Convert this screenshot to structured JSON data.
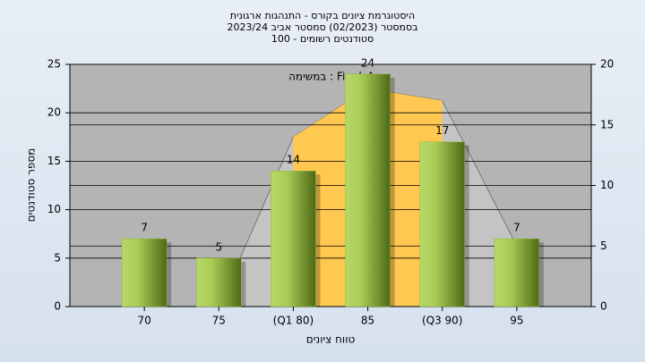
{
  "chart_data": {
    "type": "bar",
    "title": [
      "היסטוגרמת ציונים בקורס - התנהגות ארגונית",
      "בסמסטר  (02/2023)  סמסטר אביב 2023/24",
      "סטודנטים רשומים - 100"
    ],
    "annotation": "במשימה : Final_A",
    "y_label": "מספר סטודנטים",
    "x_label": "טווח ציונים",
    "categories": [
      "70",
      "75",
      "(Q1 80)",
      "85",
      "(Q3 90)",
      "95"
    ],
    "values": [
      7,
      5,
      14,
      24,
      17,
      7
    ],
    "color": "#8fb83a",
    "ylim": [
      0,
      25
    ],
    "yticks": [
      0,
      5,
      10,
      15,
      20,
      25
    ],
    "y2lim": [
      0,
      20
    ],
    "y2ticks": [
      0,
      5,
      10,
      15,
      20
    ],
    "areas": [
      {
        "axis": "y2",
        "color": "#c4c4c4",
        "values": [
          null,
          0,
          14,
          18,
          17,
          5
        ]
      },
      {
        "axis": "y2",
        "color": "#ffc850",
        "values": [
          null,
          null,
          14,
          18,
          17,
          null
        ]
      }
    ],
    "grid": true
  }
}
